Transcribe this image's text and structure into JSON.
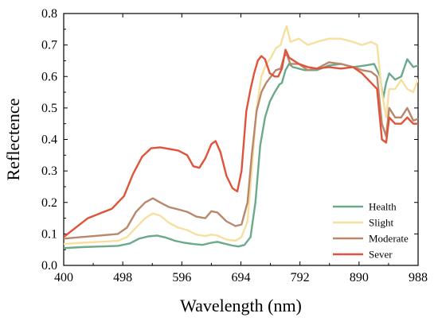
{
  "chart_data": {
    "type": "line",
    "xlabel": "Wavelength (nm)",
    "ylabel": "Reflectence",
    "xlim": [
      400,
      988
    ],
    "ylim": [
      0.0,
      0.8
    ],
    "xticks": [
      400,
      498,
      596,
      694,
      792,
      890,
      988
    ],
    "yticks": [
      0.0,
      0.1,
      0.2,
      0.3,
      0.4,
      0.5,
      0.6,
      0.7,
      0.8
    ],
    "ytick_labels": [
      "0.0",
      "0.1",
      "0.2",
      "0.3",
      "0.4",
      "0.5",
      "0.6",
      "0.7",
      "0.8"
    ],
    "grid": false,
    "legend_position": "bottom-right",
    "series": [
      {
        "name": "Health",
        "color": "#6aaa8a",
        "points": [
          [
            400,
            0.055
          ],
          [
            430,
            0.058
          ],
          [
            460,
            0.06
          ],
          [
            490,
            0.062
          ],
          [
            510,
            0.07
          ],
          [
            525,
            0.085
          ],
          [
            540,
            0.092
          ],
          [
            555,
            0.095
          ],
          [
            570,
            0.088
          ],
          [
            585,
            0.078
          ],
          [
            600,
            0.072
          ],
          [
            615,
            0.068
          ],
          [
            630,
            0.065
          ],
          [
            645,
            0.072
          ],
          [
            655,
            0.075
          ],
          [
            665,
            0.07
          ],
          [
            680,
            0.063
          ],
          [
            690,
            0.06
          ],
          [
            700,
            0.065
          ],
          [
            710,
            0.09
          ],
          [
            718,
            0.2
          ],
          [
            726,
            0.38
          ],
          [
            734,
            0.47
          ],
          [
            742,
            0.52
          ],
          [
            750,
            0.55
          ],
          [
            758,
            0.575
          ],
          [
            762,
            0.58
          ],
          [
            768,
            0.62
          ],
          [
            774,
            0.64
          ],
          [
            780,
            0.63
          ],
          [
            800,
            0.62
          ],
          [
            820,
            0.62
          ],
          [
            840,
            0.635
          ],
          [
            860,
            0.64
          ],
          [
            880,
            0.63
          ],
          [
            900,
            0.635
          ],
          [
            915,
            0.64
          ],
          [
            925,
            0.6
          ],
          [
            930,
            0.53
          ],
          [
            935,
            0.58
          ],
          [
            940,
            0.61
          ],
          [
            950,
            0.59
          ],
          [
            960,
            0.6
          ],
          [
            970,
            0.655
          ],
          [
            980,
            0.63
          ],
          [
            988,
            0.635
          ]
        ]
      },
      {
        "name": "Slight",
        "color": "#f7dfa0",
        "points": [
          [
            400,
            0.068
          ],
          [
            430,
            0.072
          ],
          [
            460,
            0.075
          ],
          [
            490,
            0.078
          ],
          [
            505,
            0.09
          ],
          [
            520,
            0.12
          ],
          [
            535,
            0.15
          ],
          [
            548,
            0.165
          ],
          [
            560,
            0.158
          ],
          [
            575,
            0.135
          ],
          [
            590,
            0.12
          ],
          [
            605,
            0.112
          ],
          [
            620,
            0.098
          ],
          [
            635,
            0.093
          ],
          [
            645,
            0.098
          ],
          [
            655,
            0.095
          ],
          [
            670,
            0.082
          ],
          [
            685,
            0.078
          ],
          [
            695,
            0.09
          ],
          [
            705,
            0.14
          ],
          [
            712,
            0.3
          ],
          [
            720,
            0.5
          ],
          [
            728,
            0.6
          ],
          [
            736,
            0.64
          ],
          [
            744,
            0.66
          ],
          [
            752,
            0.69
          ],
          [
            760,
            0.7
          ],
          [
            766,
            0.74
          ],
          [
            770,
            0.76
          ],
          [
            776,
            0.71
          ],
          [
            790,
            0.72
          ],
          [
            805,
            0.7
          ],
          [
            820,
            0.71
          ],
          [
            840,
            0.72
          ],
          [
            860,
            0.72
          ],
          [
            880,
            0.71
          ],
          [
            895,
            0.7
          ],
          [
            910,
            0.71
          ],
          [
            920,
            0.7
          ],
          [
            928,
            0.55
          ],
          [
            935,
            0.47
          ],
          [
            940,
            0.56
          ],
          [
            950,
            0.56
          ],
          [
            960,
            0.59
          ],
          [
            970,
            0.56
          ],
          [
            980,
            0.55
          ],
          [
            988,
            0.59
          ]
        ]
      },
      {
        "name": "Moderate",
        "color": "#b9886c",
        "points": [
          [
            400,
            0.085
          ],
          [
            430,
            0.09
          ],
          [
            460,
            0.095
          ],
          [
            490,
            0.1
          ],
          [
            505,
            0.12
          ],
          [
            520,
            0.17
          ],
          [
            535,
            0.2
          ],
          [
            548,
            0.213
          ],
          [
            560,
            0.2
          ],
          [
            575,
            0.185
          ],
          [
            590,
            0.178
          ],
          [
            605,
            0.17
          ],
          [
            620,
            0.155
          ],
          [
            635,
            0.15
          ],
          [
            645,
            0.172
          ],
          [
            655,
            0.168
          ],
          [
            670,
            0.14
          ],
          [
            685,
            0.125
          ],
          [
            695,
            0.13
          ],
          [
            705,
            0.2
          ],
          [
            712,
            0.35
          ],
          [
            720,
            0.49
          ],
          [
            728,
            0.55
          ],
          [
            736,
            0.58
          ],
          [
            744,
            0.6
          ],
          [
            752,
            0.62
          ],
          [
            760,
            0.625
          ],
          [
            766,
            0.665
          ],
          [
            770,
            0.67
          ],
          [
            776,
            0.64
          ],
          [
            790,
            0.64
          ],
          [
            805,
            0.62
          ],
          [
            820,
            0.625
          ],
          [
            840,
            0.645
          ],
          [
            860,
            0.64
          ],
          [
            880,
            0.63
          ],
          [
            895,
            0.62
          ],
          [
            910,
            0.615
          ],
          [
            920,
            0.6
          ],
          [
            928,
            0.45
          ],
          [
            935,
            0.41
          ],
          [
            940,
            0.5
          ],
          [
            950,
            0.47
          ],
          [
            960,
            0.47
          ],
          [
            970,
            0.5
          ],
          [
            980,
            0.46
          ],
          [
            988,
            0.465
          ]
        ]
      },
      {
        "name": "Sever",
        "color": "#e0533a",
        "points": [
          [
            400,
            0.09
          ],
          [
            420,
            0.12
          ],
          [
            440,
            0.15
          ],
          [
            460,
            0.165
          ],
          [
            480,
            0.18
          ],
          [
            500,
            0.22
          ],
          [
            515,
            0.29
          ],
          [
            530,
            0.345
          ],
          [
            545,
            0.372
          ],
          [
            560,
            0.375
          ],
          [
            575,
            0.37
          ],
          [
            590,
            0.365
          ],
          [
            605,
            0.35
          ],
          [
            615,
            0.315
          ],
          [
            625,
            0.31
          ],
          [
            635,
            0.34
          ],
          [
            645,
            0.385
          ],
          [
            652,
            0.395
          ],
          [
            660,
            0.36
          ],
          [
            670,
            0.285
          ],
          [
            680,
            0.245
          ],
          [
            688,
            0.235
          ],
          [
            695,
            0.3
          ],
          [
            703,
            0.49
          ],
          [
            710,
            0.56
          ],
          [
            716,
            0.61
          ],
          [
            722,
            0.65
          ],
          [
            728,
            0.665
          ],
          [
            734,
            0.655
          ],
          [
            742,
            0.61
          ],
          [
            750,
            0.6
          ],
          [
            756,
            0.6
          ],
          [
            762,
            0.625
          ],
          [
            768,
            0.685
          ],
          [
            774,
            0.66
          ],
          [
            790,
            0.64
          ],
          [
            805,
            0.63
          ],
          [
            820,
            0.625
          ],
          [
            840,
            0.63
          ],
          [
            860,
            0.625
          ],
          [
            880,
            0.63
          ],
          [
            895,
            0.61
          ],
          [
            910,
            0.58
          ],
          [
            920,
            0.56
          ],
          [
            928,
            0.4
          ],
          [
            935,
            0.39
          ],
          [
            940,
            0.47
          ],
          [
            950,
            0.45
          ],
          [
            960,
            0.45
          ],
          [
            970,
            0.47
          ],
          [
            980,
            0.45
          ],
          [
            988,
            0.45
          ]
        ]
      }
    ]
  }
}
